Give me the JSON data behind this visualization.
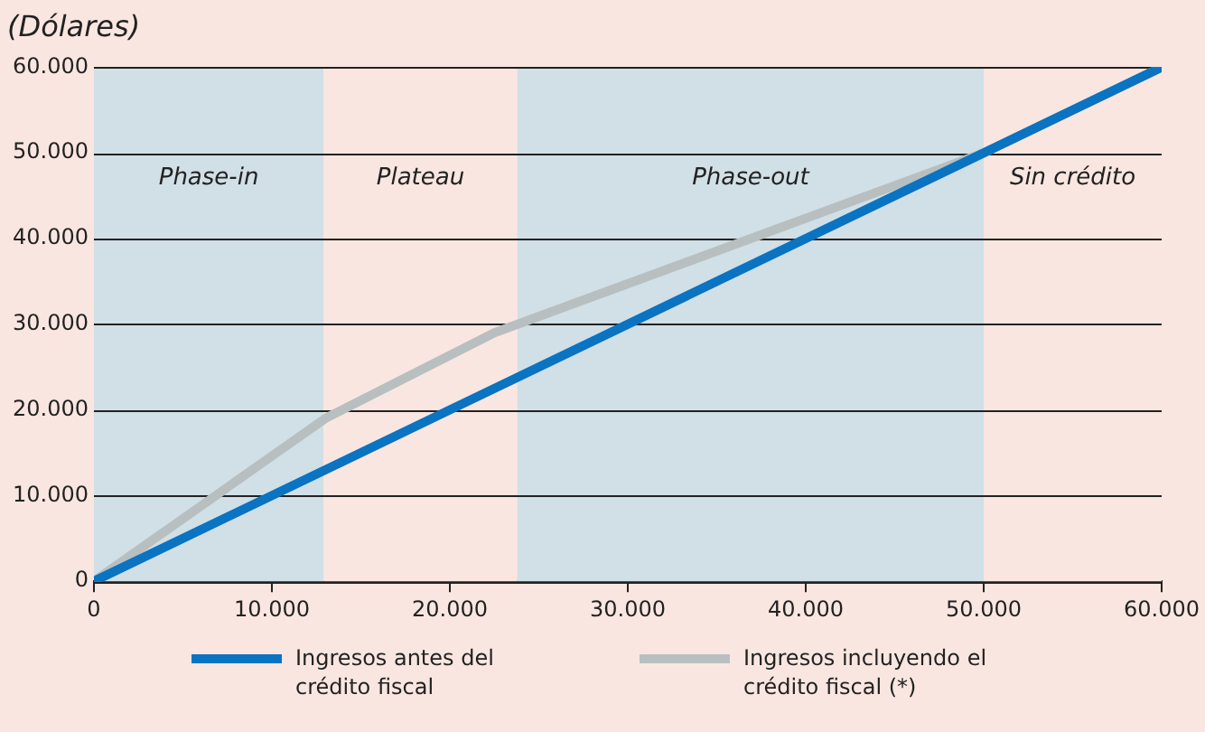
{
  "chart_data": {
    "type": "line",
    "title": "(Dólares)",
    "series": [
      {
        "name": "Ingresos antes del crédito fiscal",
        "color": "#0a73c2",
        "x": [
          0,
          60000
        ],
        "values": [
          0,
          60000
        ]
      },
      {
        "name": "Ingresos incluyendo el crédito fiscal (*)",
        "color": "#b8bfc0",
        "x": [
          0,
          13000,
          22500,
          50000,
          60000
        ],
        "values": [
          0,
          19000,
          29000,
          50000,
          60000
        ]
      }
    ],
    "xlim": [
      0,
      60000
    ],
    "xticks": [
      0,
      {
        "value": 10000,
        "label": "10.000"
      },
      {
        "value": 20000,
        "label": "20.000"
      },
      {
        "value": 30000,
        "label": "30.000"
      },
      {
        "value": 40000,
        "label": "40.000"
      },
      {
        "value": 50000,
        "label": "50.000"
      },
      {
        "value": 60000,
        "label": "60.000"
      }
    ],
    "ylim": [
      0,
      60000
    ],
    "yticks": [
      0,
      {
        "value": 10000,
        "label": "10.000"
      },
      {
        "value": 20000,
        "label": "20.000"
      },
      {
        "value": 30000,
        "label": "30.000"
      },
      {
        "value": 40000,
        "label": "40.000"
      },
      {
        "value": 50000,
        "label": "50.000"
      },
      {
        "value": 60000,
        "label": "60.000"
      }
    ],
    "bands": [
      {
        "axis": "x",
        "from": 0,
        "to": 12900,
        "label": "Phase-in",
        "color": "#d1dfe6"
      },
      {
        "axis": "x",
        "from": 12900,
        "to": 23800,
        "label": "Plateau",
        "color": "#fae6e0"
      },
      {
        "axis": "x",
        "from": 23800,
        "to": 50000,
        "label": "Phase-out",
        "color": "#d1dfe6"
      },
      {
        "axis": "x",
        "from": 50000,
        "to": 60000,
        "label": "Sin crédito",
        "color": "#fae6e0"
      }
    ],
    "grid": "y",
    "legend": "bottom",
    "marker": "none",
    "line_style": "solid"
  }
}
